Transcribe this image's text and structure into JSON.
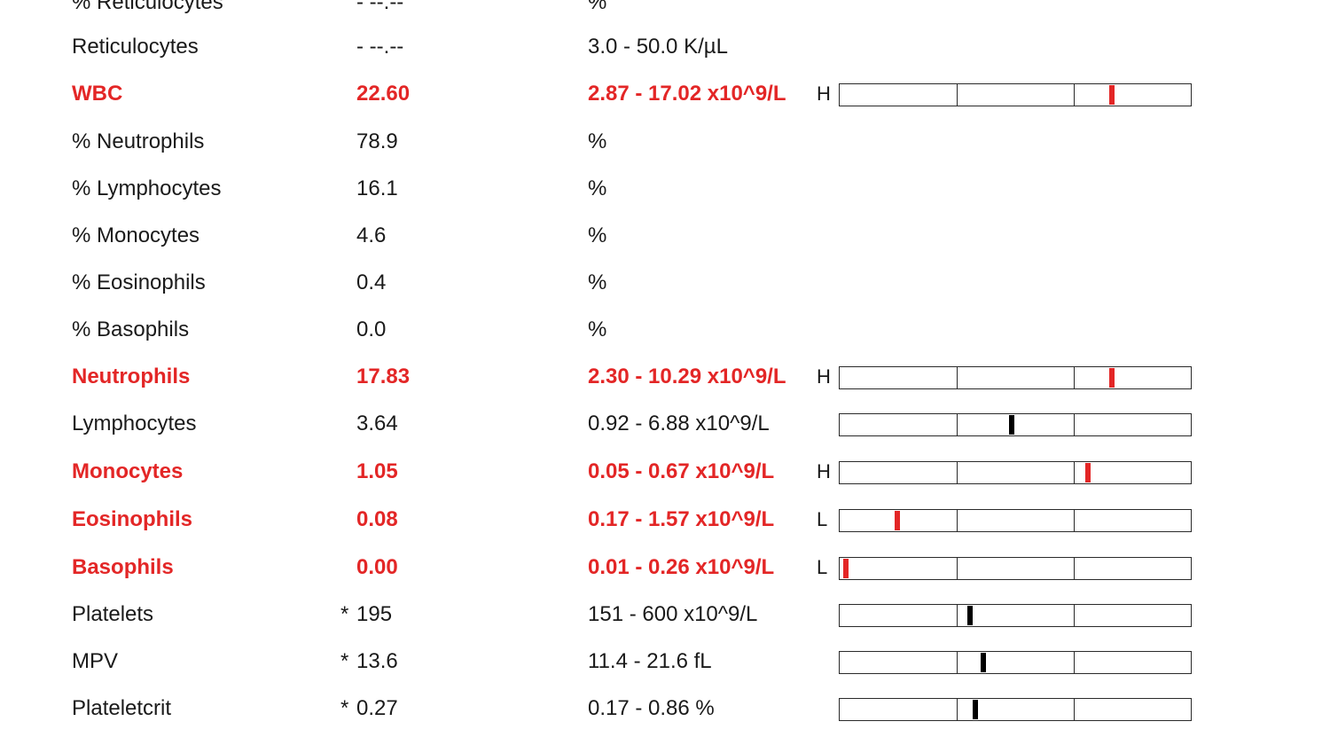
{
  "results": [
    {
      "name": "% Reticulocytes",
      "value": "- --.--",
      "star": "",
      "range": "%",
      "flag": "",
      "abnormal": false,
      "bar": false
    },
    {
      "name": "Reticulocytes",
      "value": "- --.--",
      "star": "",
      "range": "3.0 - 50.0 K/µL",
      "flag": "",
      "abnormal": false,
      "bar": false
    },
    {
      "name": "WBC",
      "value": "22.60",
      "star": "",
      "range": "2.87 - 17.02 x10^9/L",
      "flag": "H",
      "abnormal": true,
      "bar": true,
      "marker": 0.775
    },
    {
      "name": "% Neutrophils",
      "value": "78.9",
      "star": "",
      "range": "%",
      "flag": "",
      "abnormal": false,
      "bar": false
    },
    {
      "name": "% Lymphocytes",
      "value": "16.1",
      "star": "",
      "range": "%",
      "flag": "",
      "abnormal": false,
      "bar": false
    },
    {
      "name": "% Monocytes",
      "value": "4.6",
      "star": "",
      "range": "%",
      "flag": "",
      "abnormal": false,
      "bar": false
    },
    {
      "name": "% Eosinophils",
      "value": "0.4",
      "star": "",
      "range": "%",
      "flag": "",
      "abnormal": false,
      "bar": false
    },
    {
      "name": "% Basophils",
      "value": "0.0",
      "star": "",
      "range": "%",
      "flag": "",
      "abnormal": false,
      "bar": false
    },
    {
      "name": "Neutrophils",
      "value": "17.83",
      "star": "",
      "range": "2.30 - 10.29 x10^9/L",
      "flag": "H",
      "abnormal": true,
      "bar": true,
      "marker": 0.774
    },
    {
      "name": "Lymphocytes",
      "value": "3.64",
      "star": "",
      "range": "0.92 - 6.88 x10^9/L",
      "flag": "",
      "abnormal": false,
      "bar": true,
      "marker": 0.49
    },
    {
      "name": "Monocytes",
      "value": "1.05",
      "star": "",
      "range": "0.05 - 0.67 x10^9/L",
      "flag": "H",
      "abnormal": true,
      "bar": true,
      "marker": 0.708
    },
    {
      "name": "Eosinophils",
      "value": "0.08",
      "star": "",
      "range": "0.17 - 1.57 x10^9/L",
      "flag": "L",
      "abnormal": true,
      "bar": true,
      "marker": 0.165
    },
    {
      "name": "Basophils",
      "value": "0.00",
      "star": "",
      "range": "0.01 - 0.26 x10^9/L",
      "flag": "L",
      "abnormal": true,
      "bar": true,
      "marker": 0.011
    },
    {
      "name": "Platelets",
      "value": "195",
      "star": "*",
      "range": "151 - 600 x10^9/L",
      "flag": "",
      "abnormal": false,
      "bar": true,
      "marker": 0.37
    },
    {
      "name": "MPV",
      "value": "13.6",
      "star": "*",
      "range": "11.4 - 21.6 fL",
      "flag": "",
      "abnormal": false,
      "bar": true,
      "marker": 0.41
    },
    {
      "name": "Plateletcrit",
      "value": "0.27",
      "star": "*",
      "range": "0.17 - 0.86 %",
      "flag": "",
      "abnormal": false,
      "bar": true,
      "marker": 0.386
    }
  ],
  "colors": {
    "abnormal": "#e32626",
    "normal_text": "#1a1a1a",
    "normal_marker": "#000000"
  }
}
